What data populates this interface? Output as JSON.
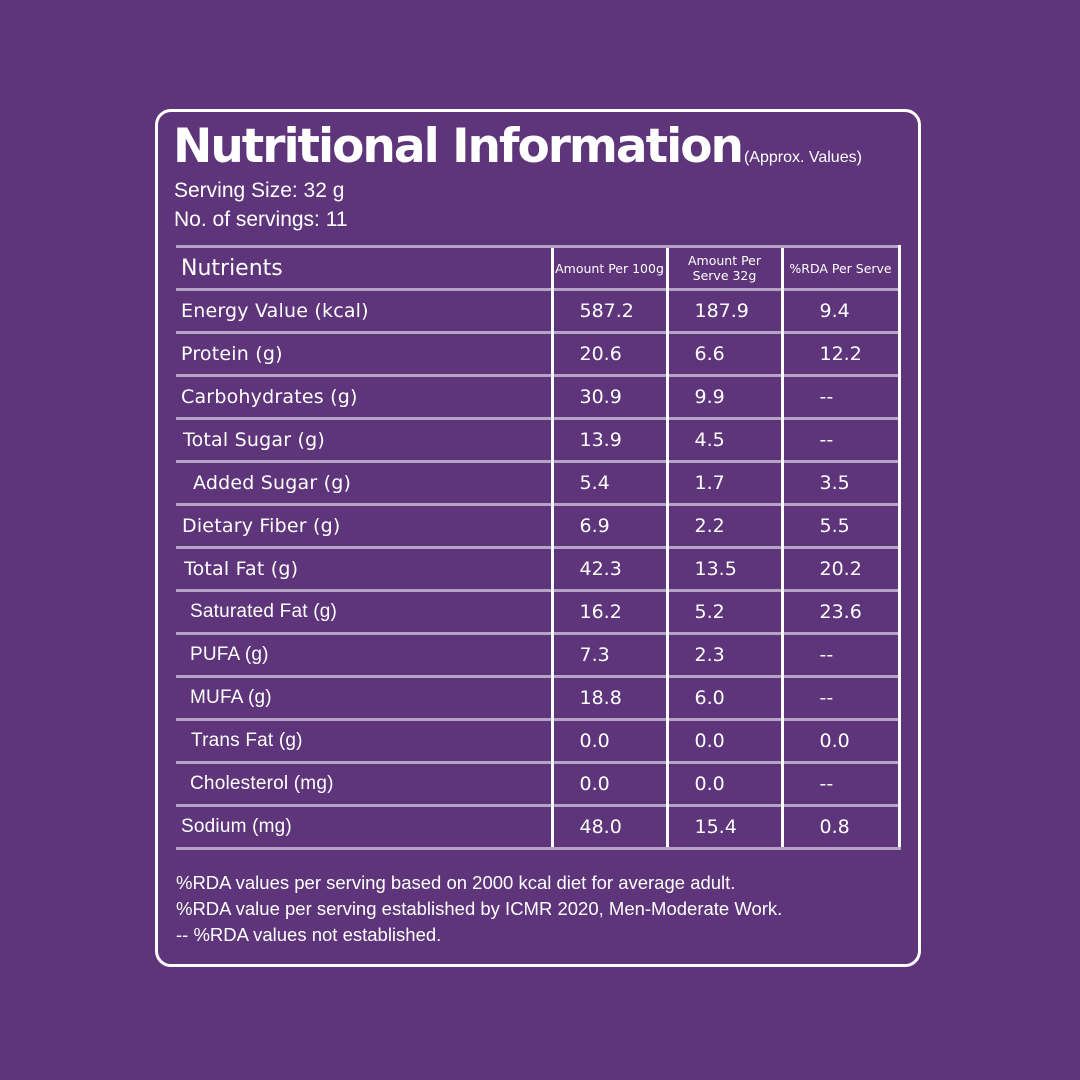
{
  "title": "Nutritional Information",
  "title_note": "(Approx. Values)",
  "serving_size": "Serving Size: 32 g",
  "servings": "No. of servings: 11",
  "table": {
    "headers": [
      "Nutrients",
      "Amount Per 100g",
      "Amount Per Serve 32g",
      "%RDA Per Serve"
    ],
    "rows": [
      {
        "name": "Energy Value (kcal)",
        "per100": "587.2",
        "perServe": "187.9",
        "rda": "9.4"
      },
      {
        "name": "Protein (g)",
        "per100": "20.6",
        "perServe": "6.6",
        "rda": "12.2"
      },
      {
        "name": "Carbohydrates (g)",
        "per100": "30.9",
        "perServe": "9.9",
        "rda": "--"
      },
      {
        "name": "Total Sugar (g)",
        "per100": "13.9",
        "perServe": "4.5",
        "rda": "--"
      },
      {
        "name": "Added Sugar (g)",
        "per100": "5.4",
        "perServe": "1.7",
        "rda": "3.5"
      },
      {
        "name": "Dietary Fiber (g)",
        "per100": "6.9",
        "perServe": "2.2",
        "rda": "5.5"
      },
      {
        "name": "Total Fat (g)",
        "per100": "42.3",
        "perServe": "13.5",
        "rda": "20.2"
      },
      {
        "name": "Saturated Fat (g)",
        "per100": "16.2",
        "perServe": "5.2",
        "rda": "23.6"
      },
      {
        "name": "PUFA (g)",
        "per100": "7.3",
        "perServe": "2.3",
        "rda": "--"
      },
      {
        "name": "MUFA (g)",
        "per100": "18.8",
        "perServe": "6.0",
        "rda": "--"
      },
      {
        "name": "Trans Fat (g)",
        "per100": "0.0",
        "perServe": "0.0",
        "rda": "0.0"
      },
      {
        "name": "Cholesterol (mg)",
        "per100": "0.0",
        "perServe": "0.0",
        "rda": "--"
      },
      {
        "name": "Sodium (mg)",
        "per100": "48.0",
        "perServe": "15.4",
        "rda": "0.8"
      }
    ]
  },
  "footnotes": [
    "%RDA values per serving based on 2000 kcal diet for average adult.",
    "%RDA value per serving established by ICMR 2020, Men-Moderate Work.",
    "-- %RDA values not established."
  ],
  "colors": {
    "background": "#5e357a",
    "text": "#ffffff",
    "row_divider": "#b6a4c6"
  }
}
